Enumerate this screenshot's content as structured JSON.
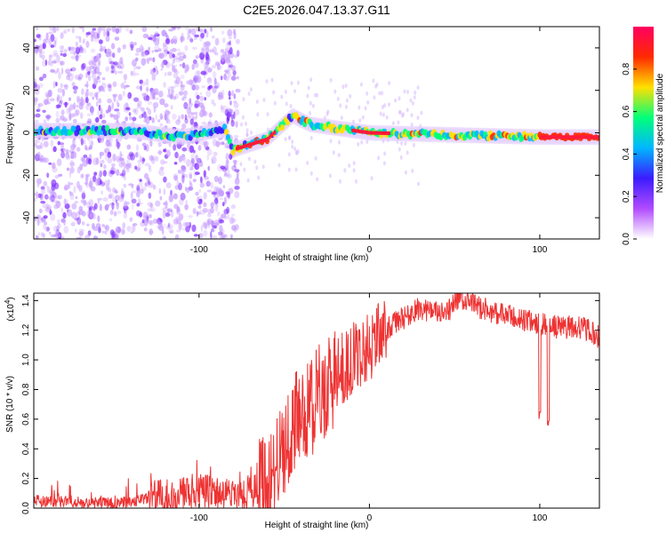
{
  "title": "C2E5.2026.047.13.37.G11",
  "chart_data": [
    {
      "type": "heatmap",
      "xlabel": "Height of straight line (km)",
      "ylabel": "Frequency (Hz)",
      "xlim": [
        -197,
        135
      ],
      "ylim": [
        -50,
        50
      ],
      "xticks": [
        -100,
        0,
        100
      ],
      "yticks": [
        -40,
        -20,
        0,
        20,
        40
      ],
      "colorbar": {
        "label": "Normalized spectral amplitude",
        "ticks": [
          "0.0",
          "0.2",
          "0.4",
          "0.6",
          "0.8"
        ],
        "range": [
          0,
          1
        ],
        "colors": [
          "#ffffff",
          "#b14bff",
          "#3b1cff",
          "#00b7ff",
          "#00ff7a",
          "#ffe000",
          "#ff2a00",
          "#ff0060"
        ]
      },
      "ridge": [
        {
          "x": -197,
          "f": 1
        },
        {
          "x": -140,
          "f": 1
        },
        {
          "x": -110,
          "f": -2
        },
        {
          "x": -85,
          "f": 2
        },
        {
          "x": -80,
          "f": -8
        },
        {
          "x": -60,
          "f": -3
        },
        {
          "x": -45,
          "f": 8
        },
        {
          "x": -35,
          "f": 4
        },
        {
          "x": 0,
          "f": 0
        },
        {
          "x": 50,
          "f": -1
        },
        {
          "x": 100,
          "f": -2
        },
        {
          "x": 135,
          "f": -2
        }
      ]
    },
    {
      "type": "line",
      "xlabel": "Height of straight line (km)",
      "ylabel": "SNR (10 * v/v)",
      "scale_label": "(x10",
      "scale_exponent": "4",
      "scale_close": ")",
      "xlim": [
        -197,
        135
      ],
      "ylim": [
        0,
        1.45
      ],
      "xticks": [
        -100,
        0,
        100
      ],
      "yticks": [
        "0.0",
        "0.2",
        "0.4",
        "0.6",
        "0.8",
        "1.0",
        "1.2",
        "1.4"
      ],
      "color": "#ee3333",
      "anchors": [
        {
          "x": -197,
          "y": 0.05
        },
        {
          "x": -150,
          "y": 0.03
        },
        {
          "x": -120,
          "y": 0.08
        },
        {
          "x": -100,
          "y": 0.12
        },
        {
          "x": -80,
          "y": 0.08
        },
        {
          "x": -60,
          "y": 0.15
        },
        {
          "x": -45,
          "y": 0.55
        },
        {
          "x": -30,
          "y": 0.75
        },
        {
          "x": -15,
          "y": 0.95
        },
        {
          "x": 0,
          "y": 1.1
        },
        {
          "x": 15,
          "y": 1.25
        },
        {
          "x": 30,
          "y": 1.35
        },
        {
          "x": 45,
          "y": 1.3
        },
        {
          "x": 52,
          "y": 1.42
        },
        {
          "x": 70,
          "y": 1.33
        },
        {
          "x": 90,
          "y": 1.27
        },
        {
          "x": 110,
          "y": 1.22
        },
        {
          "x": 125,
          "y": 1.22
        },
        {
          "x": 135,
          "y": 1.15
        }
      ],
      "dips": [
        {
          "x": 100,
          "y": 0.6
        },
        {
          "x": 105,
          "y": 0.55
        }
      ]
    }
  ]
}
